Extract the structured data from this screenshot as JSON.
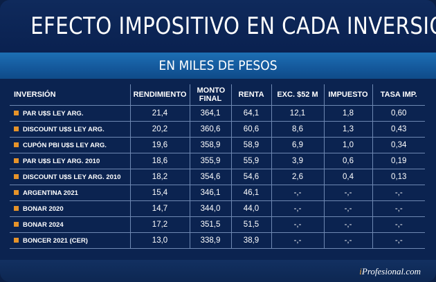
{
  "title": "EFECTO IMPOSITIVO EN CADA INVERSIÓN",
  "subtitle": "EN MILES DE PESOS",
  "columns": [
    "INVERSIÓN",
    "RENDIMIENTO",
    "MONTO FINAL",
    "RENTA",
    "EXC. $52 M",
    "IMPUESTO",
    "TASA IMP."
  ],
  "rows": [
    {
      "name": "PAR U$S LEY ARG.",
      "rendimiento": "21,4",
      "monto_final": "364,1",
      "renta": "64,1",
      "exc": "12,1",
      "impuesto": "1,8",
      "tasa": "0,60"
    },
    {
      "name": "DISCOUNT U$S LEY ARG.",
      "rendimiento": "20,2",
      "monto_final": "360,6",
      "renta": "60,6",
      "exc": "8,6",
      "impuesto": "1,3",
      "tasa": "0,43"
    },
    {
      "name": "CUPÓN PBI U$S LEY ARG.",
      "rendimiento": "19,6",
      "monto_final": "358,9",
      "renta": "58,9",
      "exc": "6,9",
      "impuesto": "1,0",
      "tasa": "0,34"
    },
    {
      "name": "PAR U$S LEY ARG. 2010",
      "rendimiento": "18,6",
      "monto_final": "355,9",
      "renta": "55,9",
      "exc": "3,9",
      "impuesto": "0,6",
      "tasa": "0,19"
    },
    {
      "name": "DISCOUNT U$S LEY ARG. 2010",
      "rendimiento": "18,2",
      "monto_final": "354,6",
      "renta": "54,6",
      "exc": "2,6",
      "impuesto": "0,4",
      "tasa": "0,13"
    },
    {
      "name": "ARGENTINA 2021",
      "rendimiento": "15,4",
      "monto_final": "346,1",
      "renta": "46,1",
      "exc": "-,-",
      "impuesto": "-,-",
      "tasa": "-,-"
    },
    {
      "name": "BONAR 2020",
      "rendimiento": "14,7",
      "monto_final": "344,0",
      "renta": "44,0",
      "exc": "-,-",
      "impuesto": "-,-",
      "tasa": "-,-"
    },
    {
      "name": "BONAR 2024",
      "rendimiento": "17,2",
      "monto_final": "351,5",
      "renta": "51,5",
      "exc": "-,-",
      "impuesto": "-,-",
      "tasa": "-,-"
    },
    {
      "name": "BONCER 2021 (CER)",
      "rendimiento": "13,0",
      "monto_final": "338,9",
      "renta": "38,9",
      "exc": "-,-",
      "impuesto": "-,-",
      "tasa": "-,-"
    }
  ],
  "brand": {
    "prefix": "i",
    "rest": "Profesional.com"
  },
  "colors": {
    "background": "#0a2048",
    "subtitle_band": "#1665a8",
    "bullet": "#e6932a",
    "grid": "#6f89b3"
  }
}
